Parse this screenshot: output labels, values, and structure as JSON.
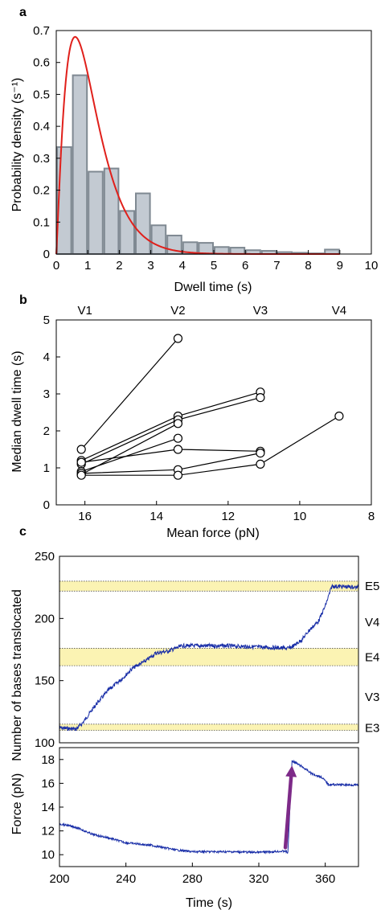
{
  "chart_data": [
    {
      "panel": "a",
      "type": "bar",
      "xlabel": "Dwell time (s)",
      "ylabel": "Probability density (s⁻¹)",
      "xlim": [
        0,
        10
      ],
      "ylim": [
        0,
        0.7
      ],
      "xticks": [
        0,
        1,
        2,
        3,
        4,
        5,
        6,
        7,
        8,
        9,
        10
      ],
      "yticks": [
        0,
        0.1,
        0.2,
        0.3,
        0.4,
        0.5,
        0.6,
        0.7
      ],
      "bin_width": 0.5,
      "bins": [
        {
          "x0": 0.0,
          "value": 0.335
        },
        {
          "x0": 0.5,
          "value": 0.56
        },
        {
          "x0": 1.0,
          "value": 0.258
        },
        {
          "x0": 1.5,
          "value": 0.268
        },
        {
          "x0": 2.0,
          "value": 0.135
        },
        {
          "x0": 2.5,
          "value": 0.19
        },
        {
          "x0": 3.0,
          "value": 0.09
        },
        {
          "x0": 3.5,
          "value": 0.058
        },
        {
          "x0": 4.0,
          "value": 0.037
        },
        {
          "x0": 4.5,
          "value": 0.035
        },
        {
          "x0": 5.0,
          "value": 0.022
        },
        {
          "x0": 5.5,
          "value": 0.02
        },
        {
          "x0": 6.0,
          "value": 0.012
        },
        {
          "x0": 6.5,
          "value": 0.01
        },
        {
          "x0": 7.0,
          "value": 0.006
        },
        {
          "x0": 7.5,
          "value": 0.004
        },
        {
          "x0": 8.0,
          "value": 0.002
        },
        {
          "x0": 8.5,
          "value": 0.014
        }
      ],
      "fit_curve": {
        "type": "gamma",
        "shape": 2.2,
        "rate": 2.0,
        "x_range": [
          0,
          9
        ]
      },
      "colors": {
        "bar_fill": "#c3cad2",
        "bar_edge": "#7f8992",
        "fit": "#e0201b"
      }
    },
    {
      "panel": "b",
      "type": "line",
      "xlabel": "Mean force (pN)",
      "ylabel": "Median dwell time (s)",
      "xlim": [
        16.8,
        8
      ],
      "ylim": [
        0,
        5
      ],
      "xticks": [
        16,
        14,
        12,
        10,
        8
      ],
      "yticks": [
        0,
        1,
        2,
        3,
        4,
        5
      ],
      "top_labels": [
        {
          "x": 16,
          "label": "V1"
        },
        {
          "x": 13.4,
          "label": "V2"
        },
        {
          "x": 11.1,
          "label": "V3"
        },
        {
          "x": 8.9,
          "label": "V4"
        }
      ],
      "series": [
        {
          "points": [
            [
              16.1,
              1.5
            ],
            [
              13.4,
              4.5
            ]
          ]
        },
        {
          "points": [
            [
              16.1,
              1.2
            ],
            [
              13.4,
              2.4
            ],
            [
              11.1,
              3.05
            ]
          ]
        },
        {
          "points": [
            [
              16.1,
              1.1
            ],
            [
              13.4,
              2.3
            ],
            [
              11.1,
              2.9
            ]
          ]
        },
        {
          "points": [
            [
              16.1,
              0.82
            ],
            [
              13.4,
              2.2
            ]
          ]
        },
        {
          "points": [
            [
              16.1,
              0.9
            ],
            [
              13.4,
              1.8
            ]
          ]
        },
        {
          "points": [
            [
              16.1,
              1.15
            ],
            [
              13.4,
              1.5
            ],
            [
              11.1,
              1.45
            ]
          ]
        },
        {
          "points": [
            [
              16.1,
              0.85
            ],
            [
              13.4,
              0.95
            ],
            [
              11.1,
              1.4
            ]
          ]
        },
        {
          "points": [
            [
              16.1,
              0.8
            ],
            [
              13.4,
              0.8
            ],
            [
              11.1,
              1.1
            ],
            [
              8.9,
              2.4
            ]
          ]
        }
      ]
    },
    {
      "panel": "c",
      "type": "line",
      "xlabel": "Time (s)",
      "xlim": [
        200,
        380
      ],
      "xticks": [
        200,
        240,
        280,
        320,
        360
      ],
      "top": {
        "ylabel": "Number of bases translocated",
        "ylim": [
          100,
          250
        ],
        "yticks": [
          100,
          150,
          200,
          250
        ],
        "bands": [
          {
            "y0": 222,
            "y1": 230,
            "label": "E5"
          },
          {
            "y0": 162,
            "y1": 176,
            "label": "E4"
          },
          {
            "y0": 110,
            "y1": 115,
            "label": "E3"
          }
        ],
        "side_labels": [
          {
            "y": 226,
            "label": "E5"
          },
          {
            "y": 197,
            "label": "V4"
          },
          {
            "y": 169,
            "label": "E4"
          },
          {
            "y": 137,
            "label": "V3"
          },
          {
            "y": 112,
            "label": "E3"
          }
        ],
        "trace": [
          [
            200,
            112
          ],
          [
            210,
            111
          ],
          [
            214,
            116
          ],
          [
            222,
            131
          ],
          [
            230,
            143
          ],
          [
            238,
            152
          ],
          [
            244,
            160
          ],
          [
            252,
            166
          ],
          [
            258,
            172
          ],
          [
            266,
            174
          ],
          [
            274,
            178
          ],
          [
            282,
            178
          ],
          [
            300,
            178
          ],
          [
            320,
            177
          ],
          [
            338,
            176
          ],
          [
            341,
            178
          ],
          [
            346,
            183
          ],
          [
            350,
            190
          ],
          [
            356,
            198
          ],
          [
            360,
            210
          ],
          [
            364,
            226
          ],
          [
            380,
            225
          ]
        ]
      },
      "bottom": {
        "ylabel": "Force (pN)",
        "ylim": [
          9,
          19
        ],
        "yticks": [
          10,
          12,
          14,
          16,
          18
        ],
        "trace": [
          [
            200,
            12.6
          ],
          [
            210,
            12.3
          ],
          [
            220,
            11.7
          ],
          [
            230,
            11.4
          ],
          [
            240,
            11.0
          ],
          [
            255,
            10.8
          ],
          [
            270,
            10.4
          ],
          [
            280,
            10.25
          ],
          [
            300,
            10.25
          ],
          [
            320,
            10.2
          ],
          [
            336,
            10.3
          ],
          [
            337.5,
            10.15
          ],
          [
            340,
            17.9
          ],
          [
            346,
            17.4
          ],
          [
            352,
            16.8
          ],
          [
            358,
            16.5
          ],
          [
            362,
            15.9
          ],
          [
            380,
            15.85
          ]
        ],
        "arrow": {
          "from": [
            336,
            10.6
          ],
          "to": [
            340,
            17.5
          ]
        }
      },
      "colors": {
        "trace": "#1a2fa8",
        "band": "#fbf3b3",
        "arrow": "#7d2a88"
      }
    }
  ]
}
